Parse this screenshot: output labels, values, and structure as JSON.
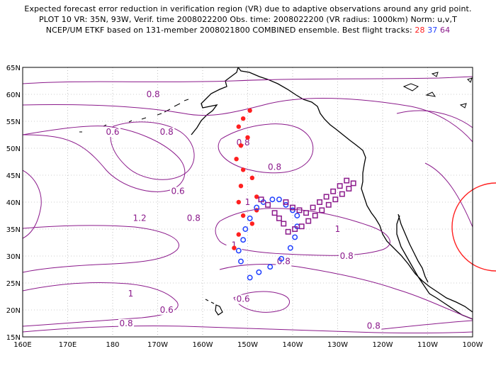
{
  "title": {
    "line1": "Expected forecast error reduction in verification region (VR) due to adaptive observations around any grid point.",
    "line2": "PLOT 10 VR: 35N, 93W, Verif. time 2008022200 Obs. time: 2008022200 (VR radius: 1000km) Norm: u,v,T",
    "line3_prefix": "NCEP/UM ETKF based on 131-member 2008021800 COMBINED ensemble.  Best flight tracks:",
    "track_red": "28",
    "track_blue": "37",
    "track_purple": "64"
  },
  "colors": {
    "contour": "#8b1a8b",
    "coast": "#000000",
    "grid": "#999999",
    "track_red": "#ff2020",
    "track_blue": "#2040ff",
    "track_purple": "#8b1a8b",
    "vr_circle": "#ff2020"
  },
  "axes": {
    "lat_labels": [
      "65N",
      "60N",
      "55N",
      "50N",
      "45N",
      "40N",
      "35N",
      "30N",
      "25N",
      "20N",
      "15N"
    ],
    "lon_labels": [
      "160E",
      "170E",
      "180",
      "170W",
      "160W",
      "150W",
      "140W",
      "130W",
      "120W",
      "110W",
      "100W"
    ]
  },
  "contour_labels": [
    {
      "text": "0.8",
      "lon": -171,
      "lat": 59.5
    },
    {
      "text": "0.8",
      "lon": -168,
      "lat": 52.5
    },
    {
      "text": "0.6",
      "lon": -180,
      "lat": 52.5
    },
    {
      "text": "0.8",
      "lon": -151,
      "lat": 50.5
    },
    {
      "text": "0.8",
      "lon": -144,
      "lat": 46
    },
    {
      "text": "0.6",
      "lon": -165.5,
      "lat": 41.5
    },
    {
      "text": "1.2",
      "lon": -174,
      "lat": 36.5
    },
    {
      "text": "0.8",
      "lon": -162,
      "lat": 36.5
    },
    {
      "text": "1",
      "lon": -150,
      "lat": 39.5
    },
    {
      "text": "1",
      "lon": -153,
      "lat": 31.5
    },
    {
      "text": "1",
      "lon": -130,
      "lat": 34.5
    },
    {
      "text": "0.8",
      "lon": -142,
      "lat": 28.5
    },
    {
      "text": "0.8",
      "lon": -128,
      "lat": 29.5
    },
    {
      "text": "1",
      "lon": -176,
      "lat": 22.5
    },
    {
      "text": "0.6",
      "lon": -168,
      "lat": 19.5
    },
    {
      "text": "0.6",
      "lon": -151,
      "lat": 21.5
    },
    {
      "text": "0.8",
      "lon": -177,
      "lat": 17
    },
    {
      "text": "0.8",
      "lon": -122,
      "lat": 16.5
    }
  ],
  "tracks": {
    "red": [
      [
        -149.5,
        57
      ],
      [
        -151,
        55.5
      ],
      [
        -152,
        54
      ],
      [
        -150,
        52
      ],
      [
        -151.5,
        50.5
      ],
      [
        -152.5,
        48
      ],
      [
        -151,
        46
      ],
      [
        -149,
        44.5
      ],
      [
        -151.5,
        43
      ],
      [
        -148,
        41
      ],
      [
        -152,
        40
      ],
      [
        -148,
        38.5
      ],
      [
        -151,
        37.5
      ],
      [
        -149,
        36
      ],
      [
        -152,
        34
      ],
      [
        -153,
        31.5
      ]
    ],
    "blue": [
      [
        -151.5,
        29
      ],
      [
        -152,
        31
      ],
      [
        -151,
        33
      ],
      [
        -150.5,
        35
      ],
      [
        -149.5,
        37
      ],
      [
        -148,
        39
      ],
      [
        -146.5,
        40
      ],
      [
        -144.5,
        40.5
      ],
      [
        -143,
        40.5
      ],
      [
        -141.5,
        39.5
      ],
      [
        -140,
        38.5
      ],
      [
        -139,
        37.5
      ],
      [
        -139,
        35.5
      ],
      [
        -139.5,
        33.5
      ],
      [
        -140.5,
        31.5
      ],
      [
        -142.5,
        29.5
      ],
      [
        -145,
        28
      ],
      [
        -147.5,
        27
      ],
      [
        -149.5,
        26
      ]
    ],
    "purple": [
      [
        -147,
        40.5
      ],
      [
        -145.5,
        39.5
      ],
      [
        -144,
        38
      ],
      [
        -143,
        37
      ],
      [
        -142,
        36
      ],
      [
        -141,
        34.5
      ],
      [
        -139.5,
        35
      ],
      [
        -138,
        35.5
      ],
      [
        -136.5,
        36.5
      ],
      [
        -135,
        37.5
      ],
      [
        -133.5,
        38.5
      ],
      [
        -132,
        39.5
      ],
      [
        -130.5,
        40.5
      ],
      [
        -129,
        41.5
      ],
      [
        -127.5,
        42.5
      ],
      [
        -126.5,
        43.5
      ],
      [
        -128,
        44
      ],
      [
        -129.5,
        43
      ],
      [
        -131,
        42
      ],
      [
        -132.5,
        41
      ],
      [
        -134,
        40
      ],
      [
        -135.5,
        39
      ],
      [
        -137,
        38
      ],
      [
        -138.5,
        38.5
      ],
      [
        -140,
        39
      ],
      [
        -141.5,
        40
      ]
    ]
  }
}
